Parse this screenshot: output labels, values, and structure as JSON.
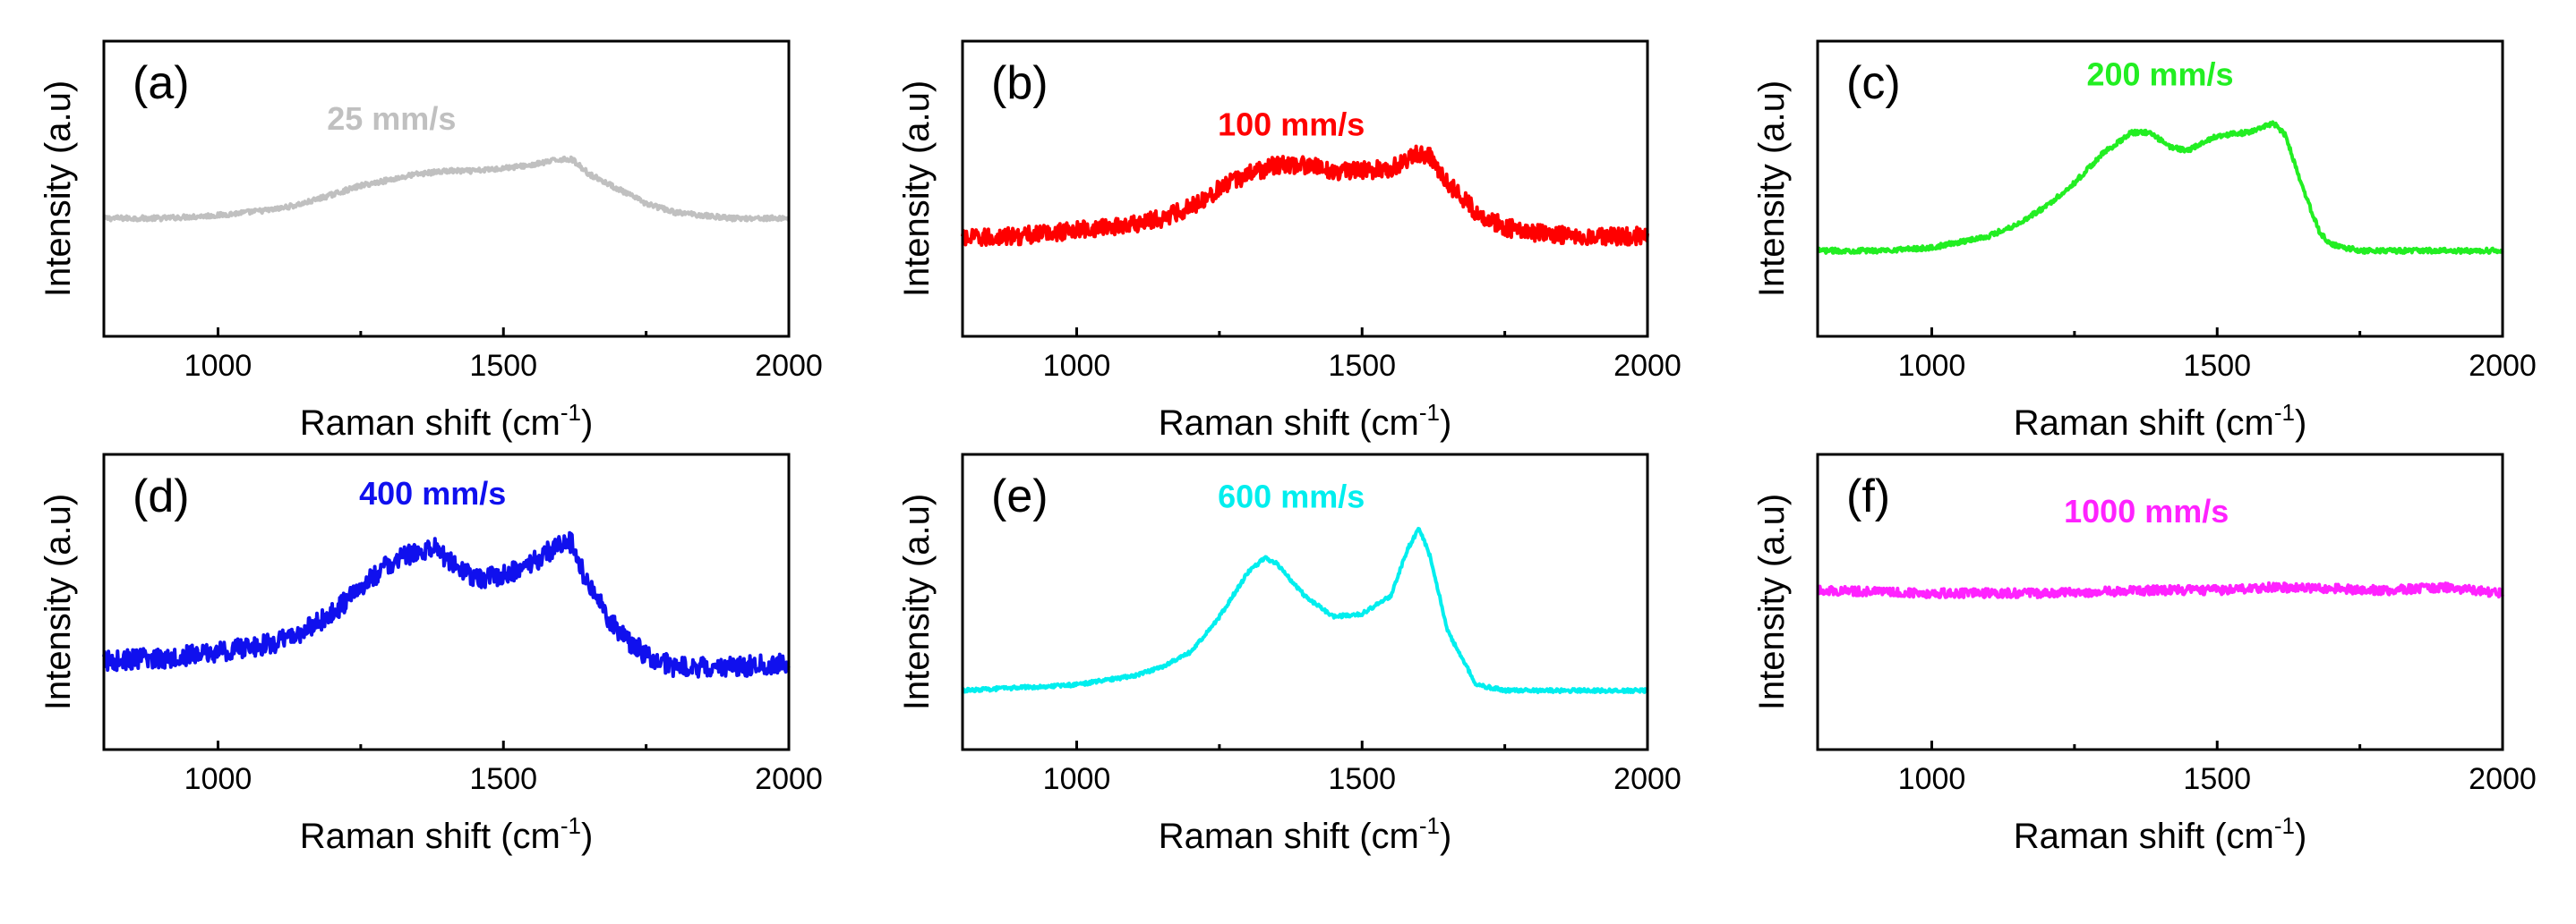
{
  "chart_data": [
    {
      "type": "line",
      "panel": "(a)",
      "label": "25 mm/s",
      "color": "#c0c0c0",
      "xlabel": "Raman shift (cm",
      "xlabel_sup": "-1",
      "xlabel_end": ")",
      "ylabel": "Intensity (a.u)",
      "xlim": [
        800,
        2000
      ],
      "ylim": [
        0,
        1
      ],
      "xticks": [
        "1000",
        "1500",
        "2000"
      ],
      "x": [
        800,
        900,
        1000,
        1100,
        1150,
        1200,
        1250,
        1300,
        1350,
        1400,
        1450,
        1500,
        1550,
        1600,
        1620,
        1650,
        1700,
        1750,
        1800,
        1850,
        1900,
        2000
      ],
      "y": [
        0.4,
        0.4,
        0.41,
        0.43,
        0.45,
        0.48,
        0.51,
        0.53,
        0.55,
        0.56,
        0.56,
        0.57,
        0.58,
        0.6,
        0.6,
        0.55,
        0.5,
        0.45,
        0.42,
        0.41,
        0.4,
        0.4
      ],
      "noise": 0.008
    },
    {
      "type": "line",
      "panel": "(b)",
      "label": "100 mm/s",
      "color": "#ff0000",
      "xlabel": "Raman shift (cm",
      "xlabel_sup": "-1",
      "xlabel_end": ")",
      "ylabel": "Intensity (a.u)",
      "xlim": [
        800,
        2000
      ],
      "ylim": [
        0,
        1
      ],
      "xticks": [
        "1000",
        "1500",
        "2000"
      ],
      "x": [
        800,
        900,
        1000,
        1100,
        1150,
        1200,
        1250,
        1300,
        1350,
        1400,
        1450,
        1500,
        1550,
        1600,
        1620,
        1650,
        1700,
        1750,
        1800,
        1900,
        2000
      ],
      "y": [
        0.33,
        0.34,
        0.36,
        0.38,
        0.4,
        0.44,
        0.5,
        0.55,
        0.58,
        0.58,
        0.56,
        0.56,
        0.57,
        0.62,
        0.61,
        0.52,
        0.42,
        0.37,
        0.35,
        0.34,
        0.34
      ],
      "noise": 0.03
    },
    {
      "type": "line",
      "panel": "(c)",
      "label": "200 mm/s",
      "color": "#22ee22",
      "xlabel": "Raman shift (cm",
      "xlabel_sup": "-1",
      "xlabel_end": ")",
      "ylabel": "Intensity (a.u)",
      "xlim": [
        800,
        2000
      ],
      "ylim": [
        0,
        1
      ],
      "xticks": [
        "1000",
        "1500",
        "2000"
      ],
      "x": [
        800,
        900,
        1000,
        1050,
        1100,
        1150,
        1200,
        1250,
        1300,
        1350,
        1380,
        1420,
        1450,
        1500,
        1550,
        1600,
        1620,
        1650,
        1680,
        1700,
        1750,
        1800,
        2000
      ],
      "y": [
        0.29,
        0.29,
        0.3,
        0.32,
        0.34,
        0.38,
        0.44,
        0.52,
        0.62,
        0.69,
        0.69,
        0.64,
        0.63,
        0.68,
        0.69,
        0.72,
        0.68,
        0.5,
        0.35,
        0.31,
        0.29,
        0.29,
        0.29
      ],
      "noise": 0.008
    },
    {
      "type": "line",
      "panel": "(d)",
      "label": "400 mm/s",
      "color": "#1010ee",
      "xlabel": "Raman shift (cm",
      "xlabel_sup": "-1",
      "xlabel_end": ")",
      "ylabel": "Intensity (a.u)",
      "xlim": [
        800,
        2000
      ],
      "ylim": [
        0,
        1
      ],
      "xticks": [
        "1000",
        "1500",
        "2000"
      ],
      "x": [
        800,
        900,
        1000,
        1100,
        1150,
        1200,
        1250,
        1300,
        1350,
        1380,
        1420,
        1450,
        1500,
        1550,
        1600,
        1620,
        1650,
        1700,
        1750,
        1800,
        1900,
        2000
      ],
      "y": [
        0.3,
        0.31,
        0.33,
        0.36,
        0.4,
        0.46,
        0.55,
        0.63,
        0.67,
        0.68,
        0.62,
        0.58,
        0.59,
        0.63,
        0.7,
        0.7,
        0.55,
        0.4,
        0.32,
        0.28,
        0.28,
        0.29
      ],
      "noise": 0.035
    },
    {
      "type": "line",
      "panel": "(e)",
      "label": "600 mm/s",
      "color": "#00eeee",
      "xlabel": "Raman shift (cm",
      "xlabel_sup": "-1",
      "xlabel_end": ")",
      "ylabel": "Intensity (a.u)",
      "xlim": [
        800,
        2000
      ],
      "ylim": [
        0,
        1
      ],
      "xticks": [
        "1000",
        "1500",
        "2000"
      ],
      "x": [
        800,
        900,
        1000,
        1100,
        1150,
        1200,
        1250,
        1300,
        1330,
        1350,
        1400,
        1450,
        1500,
        1550,
        1580,
        1600,
        1620,
        1650,
        1700,
        1750,
        1800,
        1900,
        2000
      ],
      "y": [
        0.2,
        0.21,
        0.22,
        0.25,
        0.28,
        0.33,
        0.45,
        0.6,
        0.65,
        0.63,
        0.52,
        0.45,
        0.46,
        0.52,
        0.68,
        0.75,
        0.65,
        0.4,
        0.22,
        0.2,
        0.2,
        0.2,
        0.2
      ],
      "noise": 0.006
    },
    {
      "type": "line",
      "panel": "(f)",
      "label": "1000 mm/s",
      "color": "#ff22ff",
      "xlabel": "Raman shift (cm",
      "xlabel_sup": "-1",
      "xlabel_end": ")",
      "ylabel": "Intensity (a.u)",
      "xlim": [
        800,
        2000
      ],
      "ylim": [
        0,
        1
      ],
      "xticks": [
        "1000",
        "1500",
        "2000"
      ],
      "x": [
        800,
        1000,
        1200,
        1400,
        1500,
        1600,
        1800,
        1900,
        2000
      ],
      "y": [
        0.54,
        0.53,
        0.53,
        0.54,
        0.54,
        0.55,
        0.54,
        0.55,
        0.53
      ],
      "noise": 0.015
    }
  ]
}
